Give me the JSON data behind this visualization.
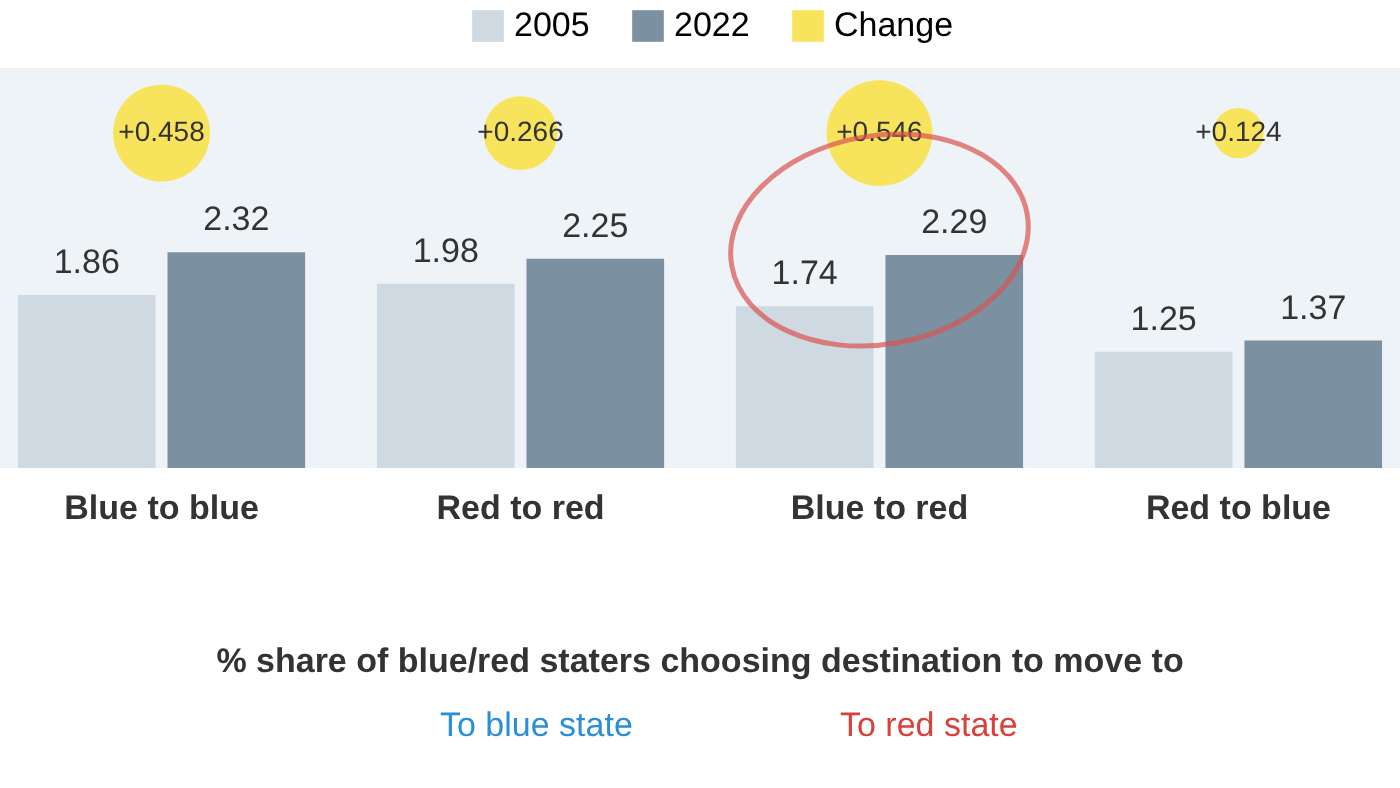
{
  "chart_data": {
    "type": "bar",
    "categories": [
      "Blue to blue",
      "Red to red",
      "Blue to red",
      "Red to blue"
    ],
    "series": [
      {
        "name": "2005",
        "color": "#cfd9e1",
        "values": [
          1.86,
          1.98,
          1.74,
          1.25
        ]
      },
      {
        "name": "2022",
        "color": "#7b90a1",
        "values": [
          2.32,
          2.25,
          2.29,
          1.37
        ]
      },
      {
        "name": "Change",
        "type": "bubble",
        "color": "#f8e45c",
        "values": [
          3.6,
          3.6,
          3.6,
          3.6
        ],
        "sizes": [
          0.839,
          0.487,
          1,
          0.227
        ],
        "value_labels": [
          null,
          null,
          null,
          null
        ]
      }
    ],
    "data_labels": true,
    "ylim": [
      0,
      4.3
    ],
    "tick_labels": "x",
    "legend": "top",
    "grid": false,
    "annotations": [
      {
        "text": "+0.458",
        "x": "Blue to blue",
        "y": 3.6
      },
      {
        "text": "+0.266",
        "x": "Red to red",
        "y": 3.6
      },
      {
        "text": "+0.546",
        "x": "Blue to red",
        "y": 3.6
      },
      {
        "text": "+0.124",
        "x": "Red to blue",
        "y": 3.6
      },
      "% share of blue/red staters choosing destination to move to",
      "To blue state",
      "To red state"
    ]
  }
}
